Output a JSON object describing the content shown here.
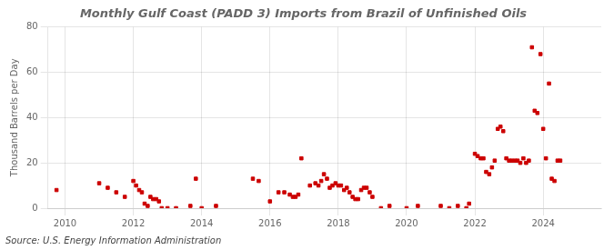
{
  "chart_data": {
    "type": "scatter",
    "title": "Monthly Gulf Coast (PADD 3) Imports from Brazil of Unfinished Oils",
    "ylabel": "Thousand Barrels per Day",
    "annotations": [
      "Source: U.S. Energy Information Administration"
    ],
    "color": "#cc0000",
    "marker": "square",
    "grid": true,
    "xlim": [
      2009.5,
      2025.7
    ],
    "xticks": [
      2010,
      2012,
      2014,
      2016,
      2018,
      2020,
      2022,
      2024
    ],
    "ylim": [
      0,
      80
    ],
    "yticks": [
      0,
      20,
      40,
      60,
      80
    ],
    "x": [
      2009.75,
      2011.0,
      2011.25,
      2011.5,
      2011.75,
      2012.0,
      2012.08,
      2012.17,
      2012.25,
      2012.33,
      2012.42,
      2012.5,
      2012.58,
      2012.67,
      2012.75,
      2012.83,
      2013.0,
      2013.25,
      2013.67,
      2013.83,
      2014.0,
      2014.42,
      2015.5,
      2015.67,
      2016.0,
      2016.25,
      2016.42,
      2016.58,
      2016.67,
      2016.75,
      2016.83,
      2016.92,
      2017.17,
      2017.33,
      2017.42,
      2017.5,
      2017.58,
      2017.67,
      2017.75,
      2017.83,
      2017.92,
      2018.0,
      2018.08,
      2018.17,
      2018.25,
      2018.33,
      2018.42,
      2018.5,
      2018.58,
      2018.67,
      2018.75,
      2018.83,
      2018.92,
      2019.0,
      2019.25,
      2019.5,
      2020.0,
      2020.33,
      2021.0,
      2021.25,
      2021.5,
      2021.75,
      2021.83,
      2022.0,
      2022.08,
      2022.17,
      2022.25,
      2022.33,
      2022.42,
      2022.5,
      2022.58,
      2022.67,
      2022.75,
      2022.83,
      2022.92,
      2023.0,
      2023.08,
      2023.17,
      2023.25,
      2023.33,
      2023.42,
      2023.5,
      2023.58,
      2023.67,
      2023.75,
      2023.83,
      2023.92,
      2024.0,
      2024.08,
      2024.17,
      2024.25,
      2024.33,
      2024.42,
      2024.5
    ],
    "values": [
      8,
      11,
      9,
      7,
      5,
      12,
      10,
      8,
      7,
      2,
      1,
      5,
      4,
      4,
      3,
      0,
      0,
      0,
      1,
      13,
      0,
      1,
      13,
      12,
      3,
      7,
      7,
      6,
      5,
      5,
      6,
      22,
      10,
      11,
      10,
      12,
      15,
      13,
      9,
      10,
      11,
      10,
      10,
      8,
      9,
      7,
      5,
      4,
      4,
      8,
      9,
      9,
      7,
      5,
      0,
      1,
      0,
      1,
      1,
      0,
      1,
      0,
      2,
      24,
      23,
      22,
      22,
      16,
      15,
      18,
      21,
      35,
      36,
      34,
      22,
      21,
      21,
      21,
      21,
      20,
      22,
      20,
      21,
      71,
      43,
      42,
      68,
      35,
      22,
      55,
      13,
      12,
      21,
      21
    ]
  }
}
